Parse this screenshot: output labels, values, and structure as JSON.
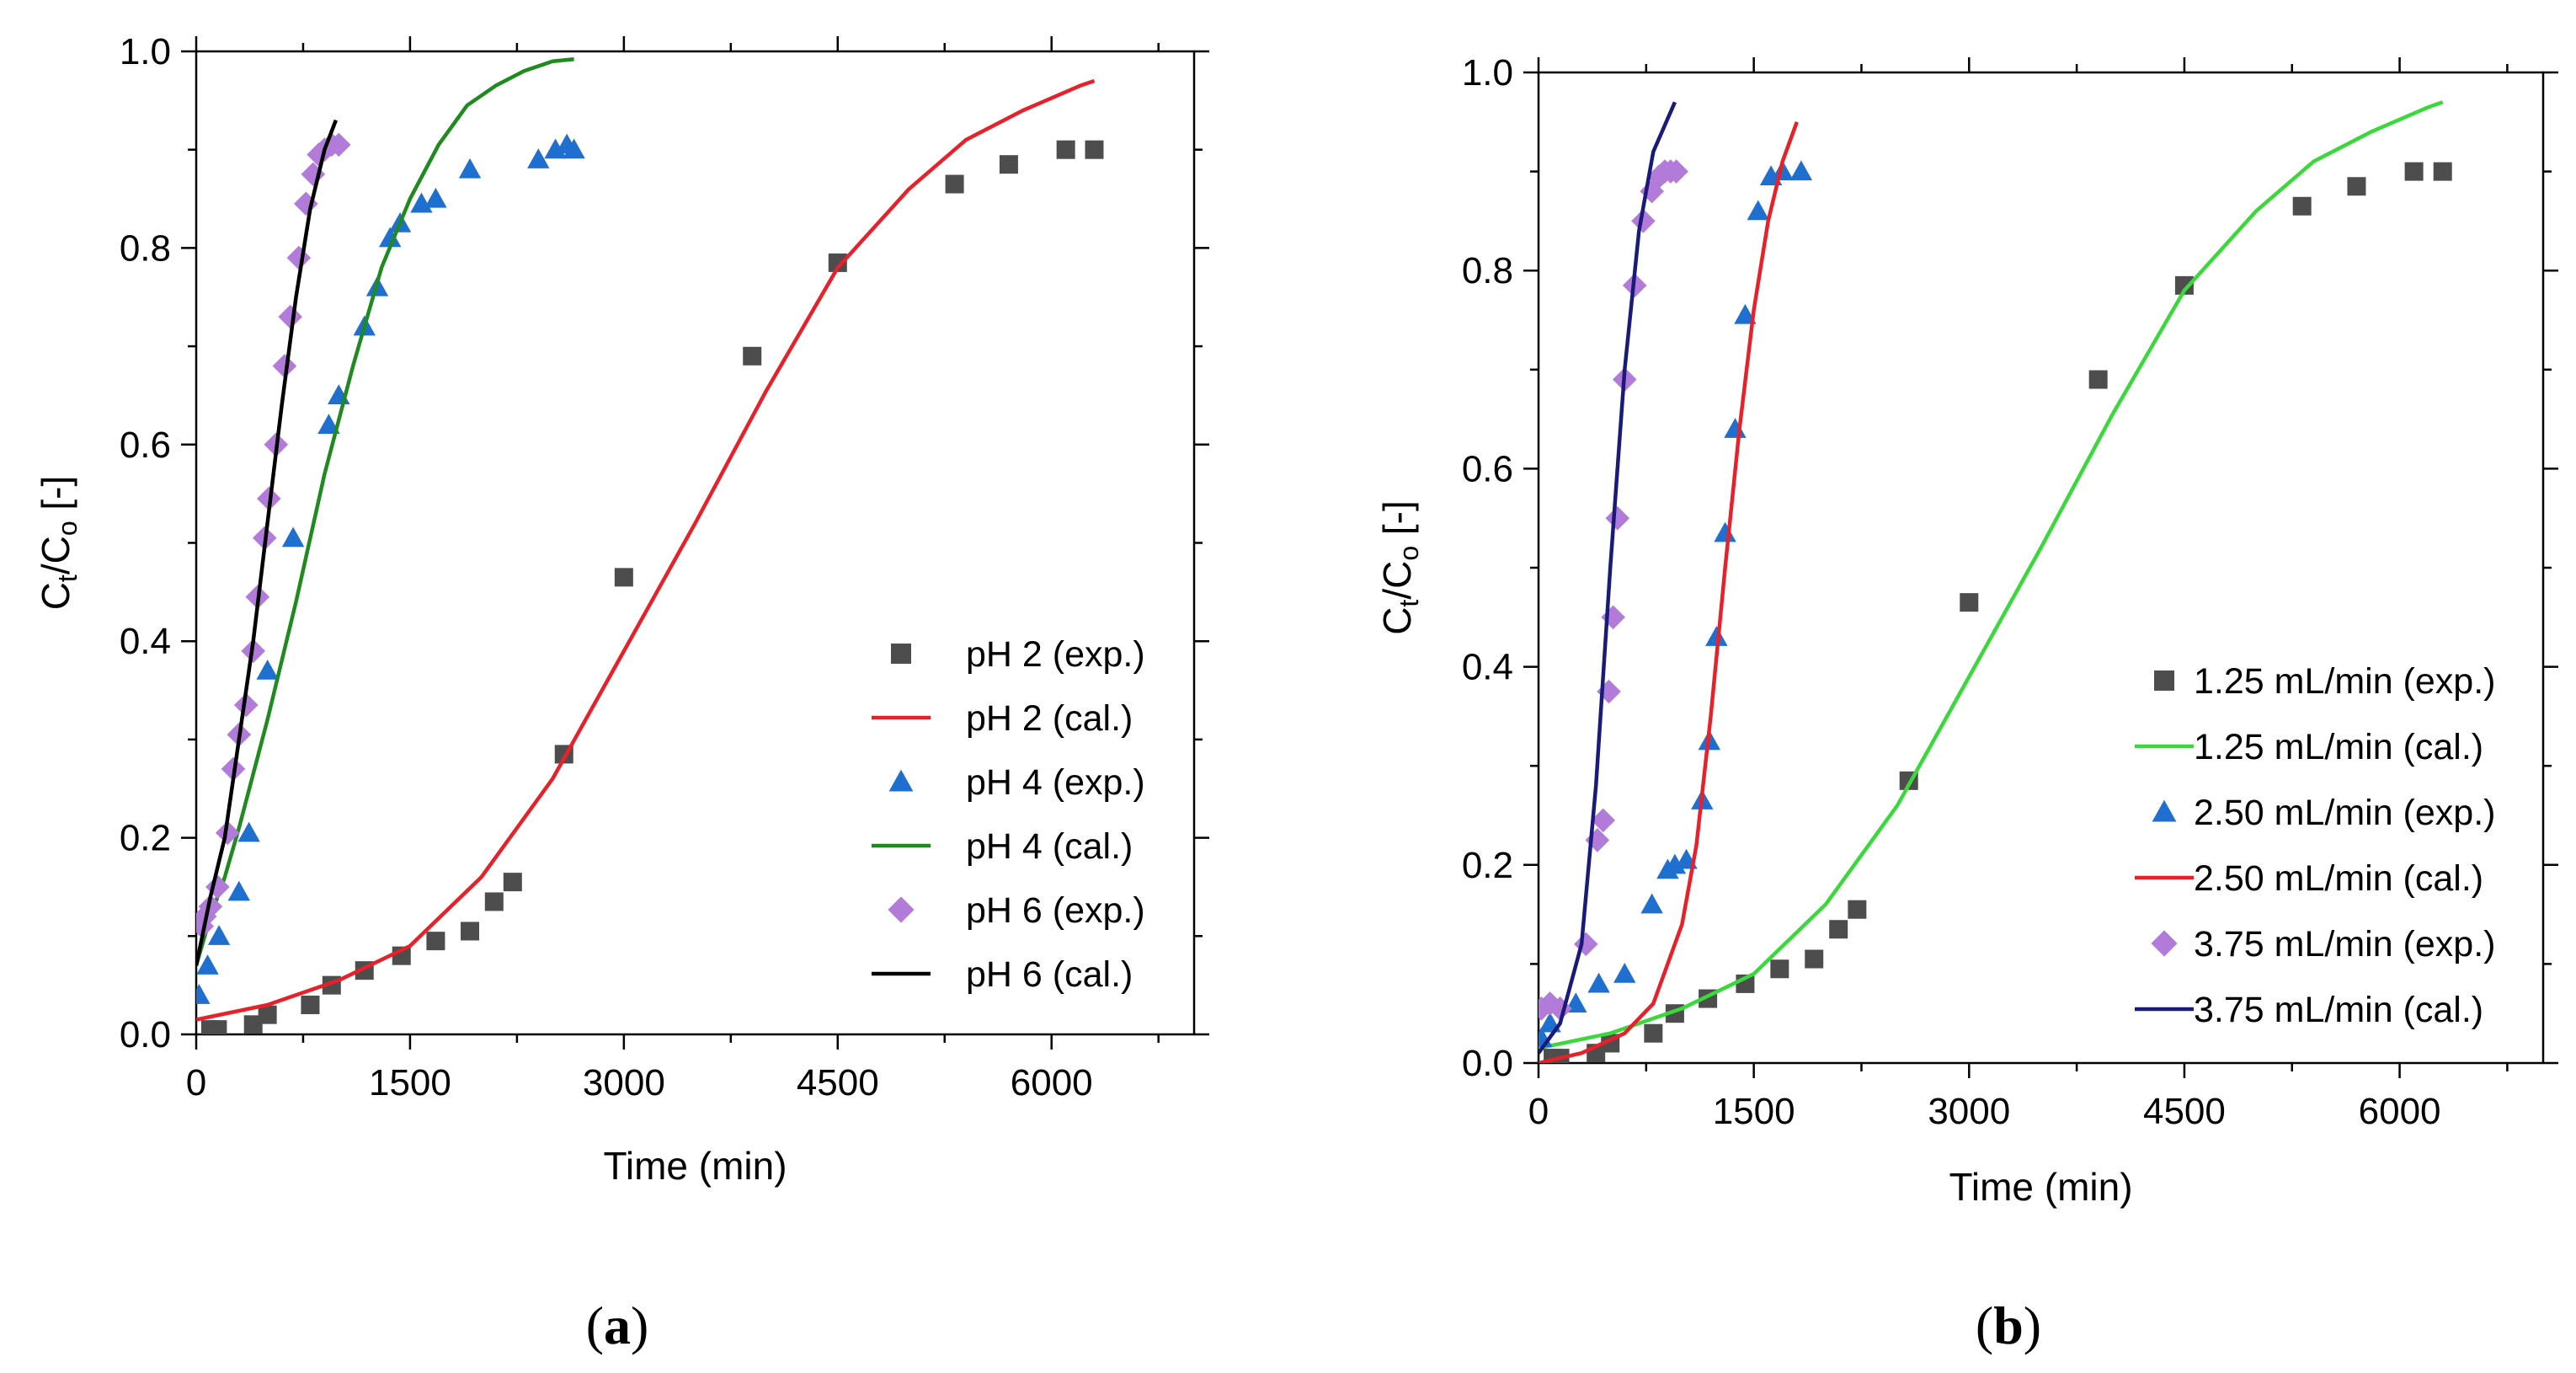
{
  "chart_data": [
    {
      "id": "a",
      "type": "scatter",
      "panel_label_open": "(",
      "panel_label_letter": "a",
      "panel_label_close": ")",
      "xlabel": "Time (min)",
      "ylabel_main": "C",
      "ylabel_sub1": "t",
      "ylabel_mid": "/C",
      "ylabel_sub2": "o",
      "ylabel_tail": " [-]",
      "xlim": [
        0,
        7000
      ],
      "ylim": [
        0,
        1.0
      ],
      "xticks": [
        0,
        1500,
        3000,
        4500,
        6000
      ],
      "xtick_labels": [
        "0",
        "1500",
        "3000",
        "4500",
        "6000"
      ],
      "yticks": [
        0.0,
        0.2,
        0.4,
        0.6,
        0.8,
        1.0
      ],
      "ytick_labels": [
        "0.0",
        "0.2",
        "0.4",
        "0.6",
        "0.8",
        "1.0"
      ],
      "legend_position": "bottom-right",
      "series": [
        {
          "name": "pH 2 (exp.)",
          "kind": "scatter",
          "marker": "square",
          "color": "#4d4d4d",
          "x": [
            100,
            150,
            400,
            500,
            800,
            950,
            1180,
            1440,
            1680,
            1920,
            2090,
            2220,
            2580,
            3000,
            3900,
            4500,
            5320,
            5700,
            6100,
            6300
          ],
          "y": [
            0.005,
            0.005,
            0.01,
            0.02,
            0.03,
            0.05,
            0.065,
            0.08,
            0.095,
            0.105,
            0.135,
            0.155,
            0.285,
            0.465,
            0.69,
            0.785,
            0.865,
            0.885,
            0.9,
            0.9
          ]
        },
        {
          "name": "pH 2 (cal.)",
          "kind": "line",
          "color": "#e8202a",
          "x": [
            0,
            500,
            1000,
            1500,
            2000,
            2500,
            3000,
            3500,
            4000,
            4500,
            5000,
            5400,
            5800,
            6200,
            6300
          ],
          "y": [
            0.015,
            0.03,
            0.055,
            0.09,
            0.16,
            0.26,
            0.39,
            0.52,
            0.655,
            0.78,
            0.86,
            0.91,
            0.94,
            0.965,
            0.97
          ]
        },
        {
          "name": "pH 4 (exp.)",
          "kind": "scatter",
          "marker": "triangle",
          "color": "#1f6fd0",
          "x": [
            20,
            80,
            160,
            300,
            370,
            500,
            680,
            930,
            1000,
            1180,
            1270,
            1360,
            1430,
            1580,
            1680,
            1920,
            2400,
            2520,
            2600,
            2650
          ],
          "y": [
            0.04,
            0.07,
            0.1,
            0.145,
            0.205,
            0.37,
            0.505,
            0.62,
            0.65,
            0.72,
            0.76,
            0.81,
            0.825,
            0.845,
            0.85,
            0.88,
            0.89,
            0.9,
            0.905,
            0.9
          ]
        },
        {
          "name": "pH 4 (cal.)",
          "kind": "line",
          "color": "#1f8a1f",
          "x": [
            0,
            100,
            200,
            300,
            500,
            700,
            900,
            1100,
            1300,
            1500,
            1700,
            1900,
            2100,
            2300,
            2500,
            2650
          ],
          "y": [
            0.07,
            0.12,
            0.16,
            0.21,
            0.32,
            0.44,
            0.57,
            0.68,
            0.78,
            0.85,
            0.905,
            0.945,
            0.965,
            0.98,
            0.99,
            0.992
          ]
        },
        {
          "name": "pH 6 (exp.)",
          "kind": "scatter",
          "marker": "diamond",
          "color": "#b27ad9",
          "x": [
            40,
            60,
            100,
            150,
            220,
            260,
            300,
            350,
            400,
            430,
            480,
            510,
            560,
            620,
            660,
            720,
            770,
            820,
            860,
            900,
            950,
            1000
          ],
          "y": [
            0.11,
            0.12,
            0.13,
            0.15,
            0.205,
            0.27,
            0.305,
            0.335,
            0.39,
            0.445,
            0.505,
            0.545,
            0.6,
            0.68,
            0.73,
            0.79,
            0.845,
            0.875,
            0.895,
            0.9,
            0.905,
            0.905
          ]
        },
        {
          "name": "pH 6 (cal.)",
          "kind": "line",
          "color": "#000000",
          "x": [
            0,
            100,
            200,
            300,
            400,
            500,
            600,
            700,
            800,
            900,
            980
          ],
          "y": [
            0.07,
            0.14,
            0.2,
            0.3,
            0.4,
            0.52,
            0.64,
            0.75,
            0.84,
            0.9,
            0.93
          ]
        }
      ]
    },
    {
      "id": "b",
      "type": "scatter",
      "panel_label_open": "(",
      "panel_label_letter": "b",
      "panel_label_close": ")",
      "xlabel": "Time (min)",
      "ylabel_main": "C",
      "ylabel_sub1": "t",
      "ylabel_mid": "/C",
      "ylabel_sub2": "o",
      "ylabel_tail": " [-]",
      "xlim": [
        0,
        7000
      ],
      "ylim": [
        0,
        1.0
      ],
      "xticks": [
        0,
        1500,
        3000,
        4500,
        6000
      ],
      "xtick_labels": [
        "0",
        "1500",
        "3000",
        "4500",
        "6000"
      ],
      "yticks": [
        0.0,
        0.2,
        0.4,
        0.6,
        0.8,
        1.0
      ],
      "ytick_labels": [
        "0.0",
        "0.2",
        "0.4",
        "0.6",
        "0.8",
        "1.0"
      ],
      "legend_position": "bottom-right",
      "series": [
        {
          "name": "1.25 mL/min (exp.)",
          "kind": "scatter",
          "marker": "square",
          "color": "#4d4d4d",
          "x": [
            100,
            150,
            400,
            500,
            800,
            950,
            1180,
            1440,
            1680,
            1920,
            2090,
            2220,
            2580,
            3000,
            3900,
            4500,
            5320,
            5700,
            6100,
            6300
          ],
          "y": [
            0.005,
            0.005,
            0.01,
            0.02,
            0.03,
            0.05,
            0.065,
            0.08,
            0.095,
            0.105,
            0.135,
            0.155,
            0.285,
            0.465,
            0.69,
            0.785,
            0.865,
            0.885,
            0.9,
            0.9
          ]
        },
        {
          "name": "1.25 mL/min (cal.)",
          "kind": "line",
          "color": "#3ad83a",
          "x": [
            0,
            500,
            1000,
            1500,
            2000,
            2500,
            3000,
            3500,
            4000,
            4500,
            5000,
            5400,
            5800,
            6200,
            6300
          ],
          "y": [
            0.015,
            0.03,
            0.055,
            0.09,
            0.16,
            0.26,
            0.39,
            0.52,
            0.655,
            0.78,
            0.86,
            0.91,
            0.94,
            0.965,
            0.97
          ]
        },
        {
          "name": "2.50 mL/min (exp.)",
          "kind": "scatter",
          "marker": "triangle",
          "color": "#1f6fd0",
          "x": [
            20,
            80,
            260,
            420,
            600,
            790,
            900,
            950,
            1030,
            1140,
            1190,
            1240,
            1300,
            1370,
            1440,
            1530,
            1620,
            1700,
            1830
          ],
          "y": [
            0.025,
            0.04,
            0.06,
            0.08,
            0.09,
            0.16,
            0.195,
            0.2,
            0.205,
            0.265,
            0.325,
            0.43,
            0.535,
            0.64,
            0.755,
            0.86,
            0.895,
            0.9,
            0.9
          ]
        },
        {
          "name": "2.50 mL/min (cal.)",
          "kind": "line",
          "color": "#e8202a",
          "x": [
            0,
            300,
            600,
            800,
            1000,
            1100,
            1200,
            1300,
            1400,
            1500,
            1600,
            1700,
            1800
          ],
          "y": [
            0.0,
            0.01,
            0.03,
            0.06,
            0.14,
            0.22,
            0.35,
            0.5,
            0.64,
            0.76,
            0.85,
            0.91,
            0.95
          ]
        },
        {
          "name": "3.75 mL/min (exp.)",
          "kind": "scatter",
          "marker": "diamond",
          "color": "#b27ad9",
          "x": [
            20,
            80,
            150,
            330,
            410,
            450,
            490,
            520,
            550,
            600,
            670,
            730,
            790,
            840,
            880,
            920,
            960
          ],
          "y": [
            0.055,
            0.06,
            0.055,
            0.12,
            0.225,
            0.245,
            0.375,
            0.45,
            0.55,
            0.69,
            0.785,
            0.85,
            0.88,
            0.895,
            0.9,
            0.9,
            0.9
          ]
        },
        {
          "name": "3.75 mL/min (cal.)",
          "kind": "line",
          "color": "#1a1a7a",
          "x": [
            0,
            150,
            300,
            400,
            500,
            600,
            700,
            800,
            950
          ],
          "y": [
            0.01,
            0.04,
            0.12,
            0.28,
            0.5,
            0.7,
            0.84,
            0.92,
            0.97
          ]
        }
      ]
    }
  ]
}
